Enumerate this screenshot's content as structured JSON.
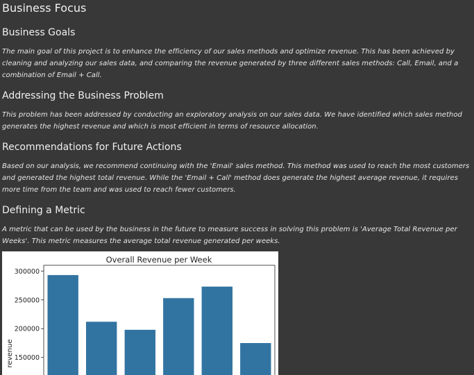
{
  "page": {
    "title": "Business Focus",
    "sections": [
      {
        "heading": "Business Goals",
        "body": "The main goal of this project is to enhance the efficiency of our sales methods and optimize revenue. This has been achieved by cleaning and analyzing our sales data, and comparing the revenue generated by three different sales methods: Call, Email, and a combination of Email + Call."
      },
      {
        "heading": "Addressing the Business Problem",
        "body": "This problem has been addressed by conducting an exploratory analysis on our sales data. We have identified which sales method generates the highest revenue and which is most efficient in terms of resource allocation."
      },
      {
        "heading": "Recommendations for Future Actions",
        "body": "Based on our analysis, we recommend continuing with the 'Email' sales method. This method was used to reach the most customers and generated the highest total revenue. While the 'Email + Call' method does generate the highest average revenue, it requires more time from the team and was used to reach fewer customers."
      },
      {
        "heading": "Defining a Metric",
        "body": "A metric that can be used by the business in the future to measure success in solving this problem is 'Average Total Revenue per Weeks'. This metric measures the average total revenue generated per weeks."
      }
    ]
  },
  "chart_data": {
    "type": "bar",
    "title": "Overall Revenue per Week",
    "ylabel": "revenue",
    "xlabel": "",
    "categories": [
      "",
      "",
      "",
      "",
      "",
      ""
    ],
    "values": [
      293000,
      212000,
      198000,
      253000,
      273000,
      175000
    ],
    "yticks": [
      150000,
      200000,
      250000,
      300000
    ],
    "ylim": [
      105000,
      310000
    ],
    "bar_color": "#3274a1",
    "grid": false
  }
}
